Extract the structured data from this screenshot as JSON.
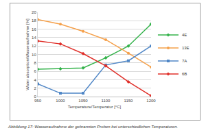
{
  "chart_data": {
    "type": "line",
    "x_label": "Temperature/Temperatur [°C]",
    "y_label": "Water absorption/Wasseraufnahme [%]",
    "caption": "Abbildung 17: Wasseraufnahme der gebrannten Proben bei unterschiedlichen Temperaturen.",
    "x": [
      950,
      1000,
      1050,
      1100,
      1150,
      1200
    ],
    "series": [
      {
        "name": "4E",
        "color": "#33b24a",
        "marker": "diamond",
        "values": [
          6.5,
          6.6,
          6.8,
          9.2,
          12,
          17.2
        ]
      },
      {
        "name": "13E",
        "color": "#f5a04a",
        "marker": "circle",
        "values": [
          18.3,
          17.2,
          15.5,
          13.5,
          10.3,
          7
        ]
      },
      {
        "name": "7A",
        "color": "#4f86c6",
        "marker": "square",
        "values": [
          3,
          0.8,
          0.8,
          7.5,
          8.5,
          12
        ]
      },
      {
        "name": "6B",
        "color": "#e0302a",
        "marker": "diamond",
        "values": [
          13.2,
          12.5,
          10.2,
          7.3,
          3.5,
          0.2
        ]
      }
    ],
    "xlim": [
      950,
      1200
    ],
    "xticks": [
      950,
      1000,
      1050,
      1100,
      1150,
      1200
    ],
    "ylim": [
      0,
      20
    ],
    "yticks": [
      0,
      2,
      4,
      6,
      8,
      10,
      12,
      14,
      16,
      18,
      20
    ],
    "grid": true,
    "legend": "right"
  }
}
